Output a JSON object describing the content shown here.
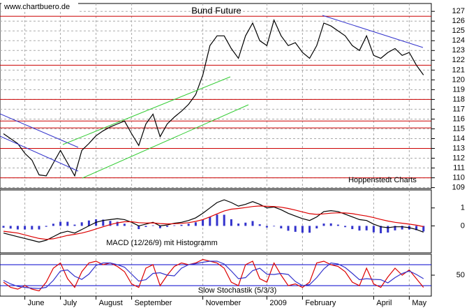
{
  "source": "www.chartbuero.de",
  "chart_data": [
    {
      "type": "line",
      "title": "Bund Future",
      "annotation": "Hoppenstedt Charts",
      "categories": [
        null,
        null,
        null,
        "June",
        null,
        null,
        null,
        null,
        "July",
        null,
        null,
        null,
        null,
        "August",
        null,
        null,
        null,
        null,
        "September",
        null,
        null,
        null,
        null,
        null,
        null,
        null,
        null,
        null,
        "November",
        null,
        null,
        null,
        null,
        null,
        null,
        null,
        null,
        "2009",
        null,
        null,
        null,
        null,
        "February",
        null,
        null,
        null,
        null,
        null,
        null,
        null,
        null,
        null,
        "April",
        null,
        null,
        null,
        null,
        "May",
        null,
        null
      ],
      "series": [
        {
          "color": "#000000",
          "values": [
            114.5,
            114,
            113.5,
            112.5,
            111.8,
            110.3,
            110.2,
            111.5,
            112.8,
            111.5,
            110.2,
            112.8,
            113.5,
            114.3,
            114.8,
            115.2,
            115.5,
            115.8,
            114.5,
            113.3,
            115.5,
            116.5,
            114.2,
            115.5,
            116.2,
            116.8,
            117.5,
            118.5,
            120.5,
            123.5,
            124.5,
            124.5,
            123.2,
            122.2,
            124.5,
            125.8,
            124,
            123.5,
            126.1,
            124.5,
            123.5,
            123.8,
            122.8,
            122.2,
            123.5,
            125.8,
            125.5,
            125,
            124.5,
            123.5,
            123,
            124.5,
            122.5,
            122.2,
            122.8,
            123.2,
            122.5,
            122.8,
            121.5,
            120.5
          ]
        }
      ],
      "reference_lines": [
        110,
        113,
        115.1,
        115.8,
        118,
        121.5,
        126.5
      ],
      "reference_color": "#cc0000",
      "ylim": [
        108.9,
        127.8
      ],
      "yticks": [
        109,
        110,
        111,
        112,
        113,
        114,
        115,
        116,
        117,
        118,
        119,
        120,
        121,
        122,
        123,
        124,
        125,
        126,
        127
      ],
      "grid": true
    },
    {
      "type": "macd",
      "label": "MACD (12/26/9) mit Histogramm",
      "series": [
        {
          "color": "#000000",
          "values": [
            -0.4,
            -0.5,
            -0.6,
            -0.7,
            -0.8,
            -0.9,
            -0.8,
            -0.6,
            -0.4,
            -0.3,
            -0.4,
            -0.2,
            0.0,
            0.2,
            0.3,
            0.35,
            0.4,
            0.35,
            0.2,
            0.0,
            0.1,
            0.2,
            0.0,
            0.05,
            0.15,
            0.2,
            0.3,
            0.45,
            0.7,
            1.0,
            1.3,
            1.45,
            1.3,
            1.1,
            1.2,
            1.35,
            1.2,
            1.0,
            1.05,
            0.9,
            0.7,
            0.55,
            0.4,
            0.3,
            0.5,
            0.8,
            0.85,
            0.8,
            0.65,
            0.5,
            0.35,
            0.3,
            0.1,
            -0.05,
            -0.1,
            -0.05,
            -0.05,
            -0.1,
            -0.2,
            -0.35
          ]
        },
        {
          "color": "#dd0000",
          "values": [
            -0.3,
            -0.35,
            -0.4,
            -0.5,
            -0.6,
            -0.7,
            -0.75,
            -0.72,
            -0.63,
            -0.53,
            -0.47,
            -0.4,
            -0.3,
            -0.17,
            -0.05,
            0.07,
            0.17,
            0.23,
            0.23,
            0.18,
            0.16,
            0.17,
            0.13,
            0.11,
            0.12,
            0.14,
            0.18,
            0.25,
            0.35,
            0.5,
            0.67,
            0.83,
            0.93,
            0.97,
            1.02,
            1.08,
            1.11,
            1.09,
            1.08,
            1.04,
            0.97,
            0.88,
            0.78,
            0.68,
            0.64,
            0.67,
            0.71,
            0.73,
            0.72,
            0.68,
            0.61,
            0.55,
            0.46,
            0.36,
            0.27,
            0.2,
            0.15,
            0.1,
            0.04,
            -0.04
          ]
        }
      ],
      "histogram": {
        "color": "#3333cc",
        "values": [
          -0.1,
          -0.15,
          -0.2,
          -0.2,
          -0.2,
          -0.2,
          -0.05,
          0.12,
          0.23,
          0.23,
          0.07,
          0.2,
          0.3,
          0.37,
          0.35,
          0.28,
          0.23,
          0.12,
          -0.03,
          -0.18,
          -0.06,
          0.03,
          -0.13,
          -0.06,
          0.03,
          0.06,
          0.12,
          0.2,
          0.35,
          0.5,
          0.63,
          0.62,
          0.37,
          0.13,
          0.18,
          0.27,
          0.09,
          -0.09,
          -0.03,
          -0.14,
          -0.27,
          -0.33,
          -0.38,
          -0.38,
          -0.14,
          0.13,
          0.14,
          0.07,
          -0.07,
          -0.18,
          -0.26,
          -0.25,
          -0.36,
          -0.41,
          -0.37,
          -0.25,
          -0.2,
          -0.2,
          -0.24,
          -0.31
        ]
      },
      "ylim": [
        -1.5,
        2
      ],
      "yticks": [
        0,
        1
      ]
    },
    {
      "type": "line",
      "label": "Slow Stochastik (5/3/3)",
      "series": [
        {
          "color": "#dd0000",
          "values": [
            30,
            15,
            10,
            20,
            10,
            5,
            30,
            70,
            85,
            40,
            15,
            60,
            85,
            90,
            80,
            85,
            75,
            60,
            25,
            15,
            70,
            80,
            20,
            50,
            75,
            85,
            80,
            85,
            95,
            90,
            85,
            70,
            30,
            20,
            80,
            90,
            40,
            30,
            85,
            50,
            20,
            25,
            15,
            30,
            85,
            90,
            80,
            75,
            60,
            30,
            20,
            70,
            25,
            15,
            45,
            70,
            50,
            65,
            40,
            15
          ]
        },
        {
          "color": "#3333cc",
          "values": [
            35,
            25,
            18,
            15,
            13,
            12,
            15,
            35,
            62,
            65,
            47,
            38,
            53,
            78,
            85,
            85,
            80,
            73,
            53,
            33,
            37,
            55,
            57,
            50,
            48,
            70,
            80,
            83,
            87,
            90,
            90,
            82,
            62,
            40,
            43,
            63,
            70,
            53,
            52,
            55,
            52,
            32,
            20,
            23,
            43,
            68,
            85,
            82,
            72,
            55,
            37,
            40,
            38,
            37,
            28,
            43,
            55,
            62,
            52,
            40
          ]
        }
      ],
      "reference_lines": [
        20,
        80
      ],
      "reference_color": "#0000cc",
      "ylim": [
        -10,
        110
      ],
      "yticks": [
        50
      ]
    }
  ]
}
